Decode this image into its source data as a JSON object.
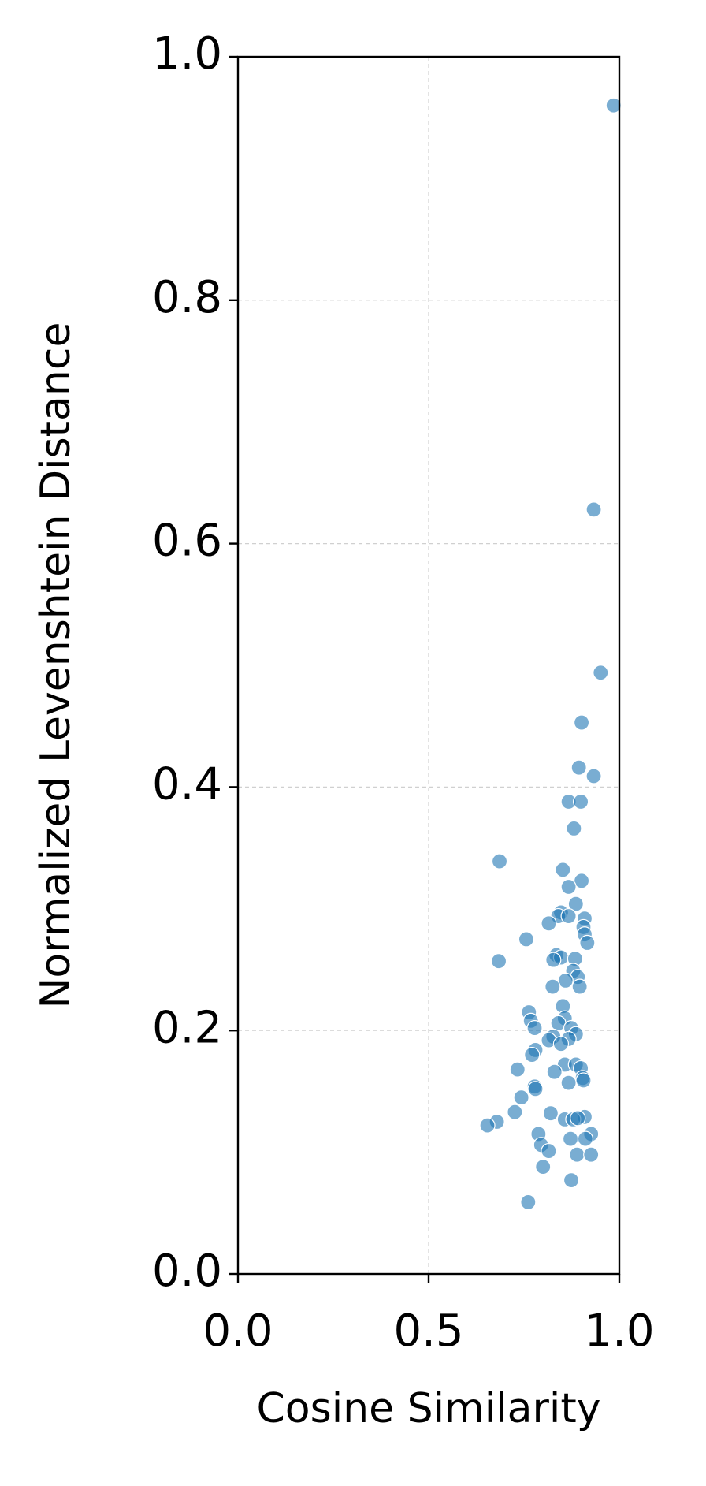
{
  "chart_data": {
    "type": "scatter",
    "x_label": "Cosine Similarity",
    "y_label": "Normalized Levenshtein Distance",
    "xlim": [
      0,
      1
    ],
    "ylim": [
      0,
      1
    ],
    "xticks": [
      {
        "value": 0,
        "label": "0.0"
      },
      {
        "value": 0.5,
        "label": "0.5"
      },
      {
        "value": 1,
        "label": "1.0"
      }
    ],
    "yticks": [
      {
        "value": 0,
        "label": "0.0"
      },
      {
        "value": 0.2,
        "label": "0.2"
      },
      {
        "value": 0.4,
        "label": "0.4"
      },
      {
        "value": 0.6,
        "label": "0.6"
      },
      {
        "value": 0.8,
        "label": "0.8"
      },
      {
        "value": 1,
        "label": "1.0"
      }
    ],
    "grid": true,
    "color": "#1f77b4",
    "x": [
      0.985,
      0.933,
      0.951,
      0.901,
      0.894,
      0.933,
      0.867,
      0.899,
      0.881,
      0.686,
      0.852,
      0.901,
      0.867,
      0.886,
      0.847,
      0.84,
      0.867,
      0.909,
      0.815,
      0.906,
      0.909,
      0.916,
      0.756,
      0.835,
      0.847,
      0.884,
      0.827,
      0.684,
      0.879,
      0.891,
      0.859,
      0.896,
      0.825,
      0.852,
      0.763,
      0.857,
      0.768,
      0.84,
      0.778,
      0.874,
      0.886,
      0.827,
      0.867,
      0.815,
      0.847,
      0.78,
      0.771,
      0.857,
      0.886,
      0.899,
      0.733,
      0.83,
      0.904,
      0.906,
      0.867,
      0.778,
      0.78,
      0.743,
      0.726,
      0.82,
      0.909,
      0.857,
      0.879,
      0.891,
      0.679,
      0.654,
      0.926,
      0.788,
      0.872,
      0.911,
      0.795,
      0.815,
      0.889,
      0.926,
      0.8,
      0.874,
      0.761
    ],
    "values": [
      0.96,
      0.628,
      0.494,
      0.453,
      0.416,
      0.409,
      0.388,
      0.388,
      0.366,
      0.339,
      0.332,
      0.323,
      0.318,
      0.304,
      0.297,
      0.294,
      0.294,
      0.292,
      0.288,
      0.285,
      0.279,
      0.272,
      0.275,
      0.262,
      0.26,
      0.259,
      0.258,
      0.257,
      0.249,
      0.244,
      0.241,
      0.236,
      0.236,
      0.22,
      0.215,
      0.21,
      0.208,
      0.206,
      0.202,
      0.202,
      0.197,
      0.195,
      0.193,
      0.192,
      0.189,
      0.184,
      0.18,
      0.172,
      0.172,
      0.169,
      0.168,
      0.166,
      0.161,
      0.159,
      0.157,
      0.154,
      0.152,
      0.145,
      0.133,
      0.132,
      0.129,
      0.127,
      0.127,
      0.128,
      0.125,
      0.122,
      0.115,
      0.115,
      0.111,
      0.111,
      0.106,
      0.101,
      0.098,
      0.098,
      0.088,
      0.077,
      0.059
    ]
  }
}
